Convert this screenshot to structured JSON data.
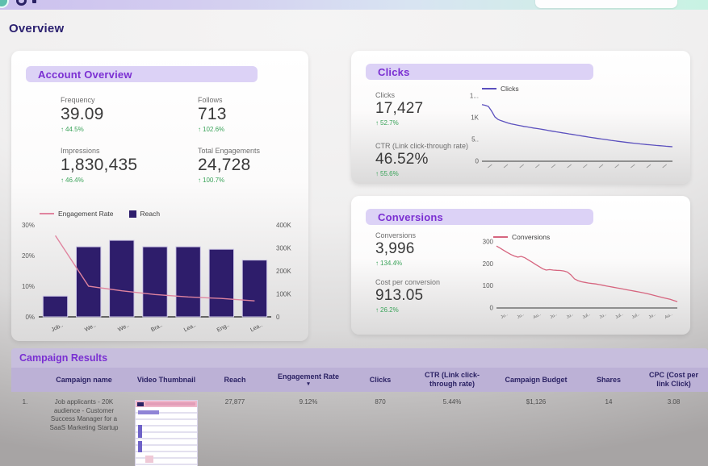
{
  "page_title": "Overview",
  "icons": {
    "up_arrow": "↑",
    "sort_desc": "▾"
  },
  "cards": {
    "account_overview": {
      "title": "Account Overview",
      "metrics": [
        {
          "label": "Frequency",
          "value": "39.09",
          "delta": "44.5%"
        },
        {
          "label": "Follows",
          "value": "713",
          "delta": "102.6%"
        },
        {
          "label": "Impressions",
          "value": "1,830,435",
          "delta": "46.4%"
        },
        {
          "label": "Total Engagements",
          "value": "24,728",
          "delta": "100.7%"
        }
      ]
    },
    "clicks": {
      "title": "Clicks",
      "metrics": [
        {
          "label": "Clicks",
          "value": "17,427",
          "delta": "52.7%"
        },
        {
          "label": "CTR (Link click-through rate)",
          "value": "46.52%",
          "delta": "55.6%"
        }
      ]
    },
    "conversions": {
      "title": "Conversions",
      "metrics": [
        {
          "label": "Conversions",
          "value": "3,996",
          "delta": "134.4%"
        },
        {
          "label": "Cost per conversion",
          "value": "913.05",
          "delta": "26.2%"
        }
      ]
    }
  },
  "chart_data": [
    {
      "id": "reach_engagement",
      "type": "bar",
      "title": "",
      "categories": [
        "Job..",
        "We..",
        "We..",
        "Bra..",
        "Lea..",
        "Eng..",
        "Lea.."
      ],
      "series": [
        {
          "name": "Engagement Rate",
          "type": "line",
          "color": "#e0849f",
          "axis": "left",
          "values": [
            26.5,
            10,
            8.5,
            7.3,
            6.5,
            6.0,
            5.2
          ]
        },
        {
          "name": "Reach",
          "type": "bar",
          "color": "#2e1d6b",
          "axis": "right",
          "values": [
            90000,
            305000,
            333000,
            305000,
            305000,
            294000,
            247000
          ]
        }
      ],
      "left_axis": {
        "min": 0,
        "max": 30,
        "ticks": [
          "0%",
          "10%",
          "20%",
          "30%"
        ]
      },
      "right_axis": {
        "min": 0,
        "max": 400000,
        "ticks": [
          "0",
          "100K",
          "200K",
          "300K",
          "400K"
        ]
      },
      "legend_position": "top"
    },
    {
      "id": "clicks_over_time",
      "type": "line",
      "title": "",
      "legend": [
        "Clicks"
      ],
      "color": "#5b50be",
      "ylim": [
        0,
        1500
      ],
      "y_ticks": [
        "0",
        "5..",
        "1K",
        "1..."
      ],
      "x_tick_count": 12,
      "values": [
        1300,
        1285,
        1260,
        1150,
        1020,
        960,
        930,
        905,
        880,
        860,
        845,
        830,
        815,
        800,
        788,
        775,
        763,
        752,
        740,
        728,
        715,
        700,
        688,
        676,
        664,
        652,
        640,
        628,
        616,
        604,
        592,
        580,
        568,
        556,
        545,
        534,
        523,
        512,
        501,
        490,
        480,
        470,
        460,
        450,
        441,
        432,
        423,
        415,
        407,
        399,
        391,
        384,
        377,
        370,
        363,
        357,
        351,
        345,
        339,
        333
      ]
    },
    {
      "id": "conversions_over_time",
      "type": "line",
      "title": "",
      "legend": [
        "Conversions"
      ],
      "color": "#d6657f",
      "ylim": [
        0,
        300
      ],
      "y_ticks": [
        "0",
        "100",
        "200",
        "300"
      ],
      "x_ticks": [
        "Ju..",
        "Ju..",
        "Au..",
        "Ju..",
        "Ju..",
        "Jul..",
        "Ju..",
        "Jul..",
        "Jul..",
        "Ju..",
        "Au.."
      ],
      "values": [
        281,
        272,
        262,
        252,
        243,
        236,
        231,
        234,
        228,
        218,
        208,
        198,
        188,
        178,
        172,
        174,
        172,
        171,
        170,
        168,
        163,
        150,
        132,
        124,
        119,
        116,
        113,
        111,
        109,
        106,
        103,
        100,
        97,
        94,
        91,
        88,
        85,
        82,
        79,
        76,
        73,
        70,
        67,
        63,
        59,
        55,
        51,
        47,
        43,
        39,
        34,
        29
      ]
    }
  ],
  "table": {
    "title": "Campaign Results",
    "columns": [
      "Campaign name",
      "Video Thumbnail",
      "Reach",
      "Engagement Rate",
      "Clicks",
      "CTR (Link click-through rate)",
      "Campaign Budget",
      "Shares",
      "CPC (Cost per link Click)"
    ],
    "sorted_column": "Engagement Rate",
    "rows": [
      {
        "index": "1.",
        "campaign_name": "Job applicants - 20K audience - Customer Success Manager for a SaaS Marketing Startup",
        "reach": "27,877",
        "engagement_rate": "9.12%",
        "clicks": "870",
        "ctr": "5.44%",
        "budget": "$1,126",
        "shares": "14",
        "cpc": "3.08"
      }
    ]
  },
  "colors": {
    "accent_purple": "#7b2fd2",
    "pill_bg": "#dcd2f6",
    "dark_indigo": "#2b2264",
    "positive_green": "#3ba35a",
    "bar_color": "#2e1d6b",
    "engagement_line": "#e0849f",
    "clicks_line": "#5b50be",
    "conversions_line": "#d6657f",
    "table_title_bg": "#c7bedd",
    "table_header_bg": "#bcb1d6"
  }
}
